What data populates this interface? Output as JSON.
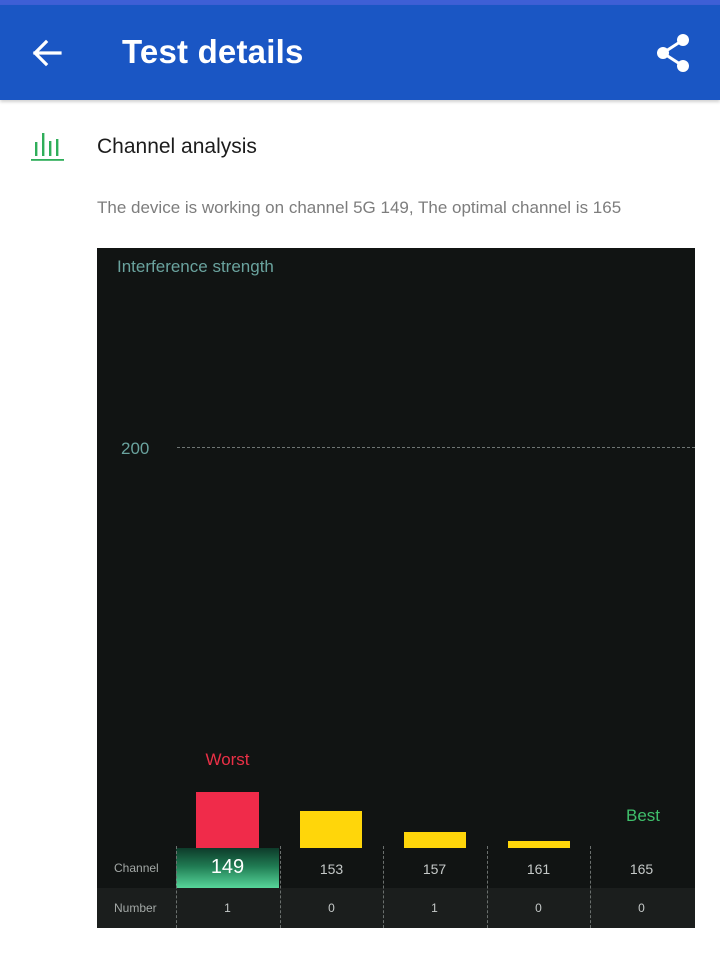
{
  "app_bar": {
    "title": "Test details",
    "back_icon": "arrow-left-icon",
    "share_icon": "share-icon",
    "color": "#1a56c4"
  },
  "section": {
    "icon": "bar-chart-icon",
    "title": "Channel analysis",
    "description": "The device is working on channel 5G 149, The optimal channel is 165"
  },
  "chart_data": {
    "type": "bar",
    "ylabel": "Interference strength",
    "reference_value": "200",
    "row_labels": {
      "channel": "Channel",
      "number": "Number"
    },
    "categories": [
      "149",
      "153",
      "157",
      "161",
      "165"
    ],
    "numbers": [
      "1",
      "0",
      "1",
      "0",
      "0"
    ],
    "values": [
      38,
      25,
      11,
      5,
      0
    ],
    "ylim": [
      0,
      280
    ],
    "bar_colors": [
      "#f02b4a",
      "#ffd60a",
      "#ffd60a",
      "#ffd60a",
      "#ffd60a"
    ],
    "selected_channel": "149",
    "worst_label": "Worst",
    "best_label": "Best",
    "worst_index": 0,
    "best_index": 4
  }
}
